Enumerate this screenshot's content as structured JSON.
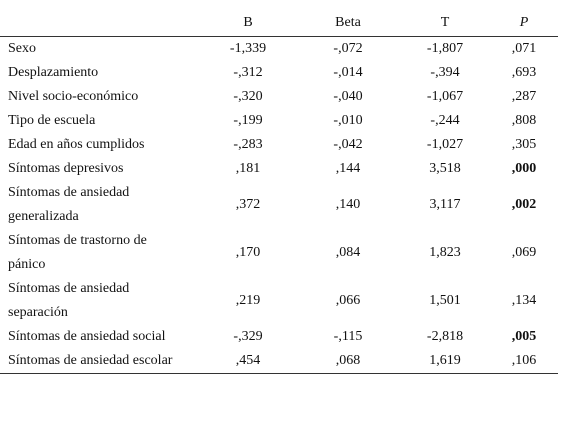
{
  "table": {
    "headers": [
      "B",
      "Beta",
      "T",
      "P"
    ],
    "rows": [
      [
        "Sexo",
        "-1,339",
        "-,072",
        "-1,807",
        ",071"
      ],
      [
        "Desplazamiento",
        "-,312",
        "-,014",
        "-,394",
        ",693"
      ],
      [
        "Nivel socio-económico",
        "-,320",
        "-,040",
        "-1,067",
        ",287"
      ],
      [
        "Tipo de escuela",
        "-,199",
        "-,010",
        "-,244",
        ",808"
      ],
      [
        "Edad en años cumplidos",
        "-,283",
        "-,042",
        "-1,027",
        ",305"
      ],
      [
        "Síntomas depresivos",
        ",181",
        ",144",
        "3,518",
        ",000"
      ],
      [
        "Síntomas de ansiedad generalizada",
        ",372",
        ",140",
        "3,117",
        ",002"
      ],
      [
        "Síntomas de trastorno de pánico",
        ",170",
        ",084",
        "1,823",
        ",069"
      ],
      [
        "Síntomas de ansiedad separación",
        ",219",
        ",066",
        "1,501",
        ",134"
      ],
      [
        "Síntomas de ansiedad social",
        "-,329",
        "-,115",
        "-2,818",
        ",005"
      ],
      [
        "Síntomas de ansiedad escolar",
        ",454",
        ",068",
        "1,619",
        ",106"
      ]
    ]
  }
}
